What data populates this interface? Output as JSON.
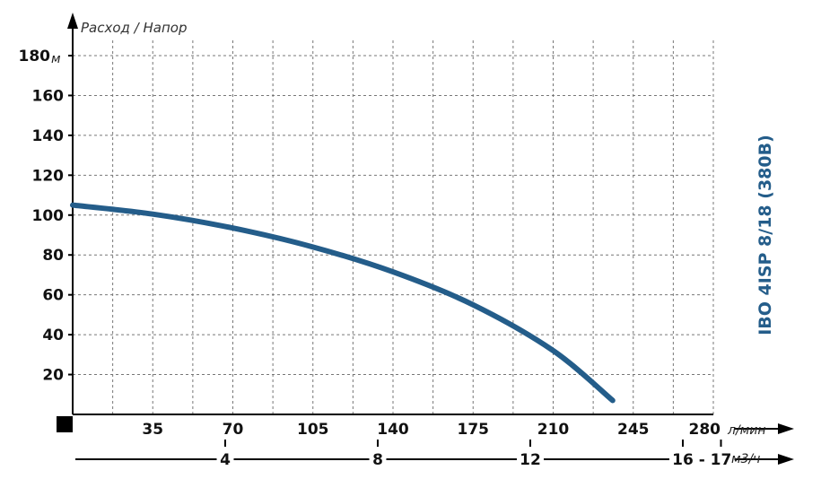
{
  "chart_data": {
    "type": "line",
    "title": "IBO 4ISP 8/18 (380В)",
    "ylabel": "Расход / Напор",
    "y_unit": "м",
    "ylim": [
      0,
      180
    ],
    "y_ticks": [
      "20",
      "40",
      "60",
      "80",
      "100",
      "120",
      "140",
      "160",
      "180"
    ],
    "xlim": [
      0,
      280
    ],
    "x_unit": "л/мин",
    "x_ticks": [
      "35",
      "70",
      "105",
      "140",
      "175",
      "210",
      "245",
      "280"
    ],
    "x2_unit": "м3/ч",
    "x2_ticks": [
      {
        "label": "4",
        "value": 4
      },
      {
        "label": "8",
        "value": 8
      },
      {
        "label": "12",
        "value": 12
      },
      {
        "label": "16",
        "value": 16
      },
      {
        "label": "-",
        "value": 16.5
      },
      {
        "label": "17",
        "value": 17
      }
    ],
    "grid": true,
    "series": [
      {
        "color": "#245d8a",
        "x": [
          0,
          35,
          70,
          105,
          140,
          175,
          210,
          236
        ],
        "y": [
          105,
          100.5,
          93.5,
          84,
          71.5,
          55,
          32,
          7
        ]
      }
    ]
  }
}
